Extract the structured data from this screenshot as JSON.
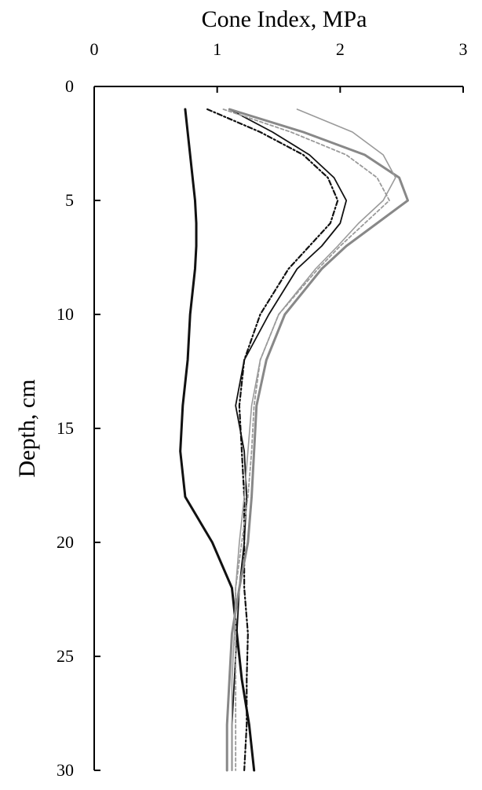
{
  "chart_data": {
    "type": "line",
    "orientation": "vertical",
    "x_title": "Cone Index, MPa",
    "y_title": "Depth, cm",
    "y": [
      1,
      2,
      3,
      4,
      5,
      6,
      7,
      8,
      10,
      12,
      14,
      16,
      18,
      20,
      22,
      24,
      26,
      28,
      30
    ],
    "xlim": [
      0,
      3
    ],
    "xticks": [
      0,
      1,
      2,
      3
    ],
    "ylim": [
      0,
      30
    ],
    "yticks": [
      0,
      5,
      10,
      15,
      20,
      25,
      30
    ],
    "y_inverted": true,
    "x_axis_position": "top",
    "grid": false,
    "series": [
      {
        "color": "#111111",
        "width": 3,
        "dash": "none",
        "values": [
          0.74,
          0.76,
          0.78,
          0.8,
          0.82,
          0.83,
          0.83,
          0.82,
          0.78,
          0.76,
          0.72,
          0.7,
          0.74,
          0.96,
          1.12,
          1.16,
          1.2,
          1.26,
          1.3
        ]
      },
      {
        "color": "#111111",
        "width": 1.8,
        "dash": "none",
        "values": [
          1.1,
          1.45,
          1.75,
          1.95,
          2.05,
          2.0,
          1.85,
          1.65,
          1.42,
          1.22,
          1.15,
          1.22,
          1.24,
          1.22,
          1.18,
          1.16,
          1.14,
          1.12,
          1.12
        ]
      },
      {
        "color": "#111111",
        "width": 2.2,
        "dash": "6 3 2 3",
        "values": [
          0.92,
          1.35,
          1.7,
          1.9,
          1.98,
          1.92,
          1.75,
          1.58,
          1.35,
          1.22,
          1.18,
          1.2,
          1.22,
          1.22,
          1.22,
          1.25,
          1.24,
          1.24,
          1.22
        ]
      },
      {
        "color": "#888888",
        "width": 3,
        "dash": "none",
        "values": [
          1.1,
          1.7,
          2.2,
          2.48,
          2.55,
          2.3,
          2.05,
          1.85,
          1.55,
          1.4,
          1.32,
          1.3,
          1.28,
          1.25,
          1.18,
          1.12,
          1.1,
          1.08,
          1.08
        ]
      },
      {
        "color": "#9a9a9a",
        "width": 1.6,
        "dash": "none",
        "values": [
          1.65,
          2.1,
          2.35,
          2.45,
          2.35,
          2.15,
          1.98,
          1.8,
          1.5,
          1.35,
          1.28,
          1.25,
          1.22,
          1.18,
          1.15,
          1.14,
          1.12,
          1.12,
          1.12
        ]
      },
      {
        "color": "#9a9a9a",
        "width": 1.8,
        "dash": "4 3",
        "values": [
          1.05,
          1.6,
          2.05,
          2.3,
          2.4,
          2.2,
          2.0,
          1.82,
          1.5,
          1.35,
          1.3,
          1.28,
          1.25,
          1.2,
          1.15,
          1.15,
          1.15,
          1.15,
          1.15
        ]
      }
    ]
  }
}
